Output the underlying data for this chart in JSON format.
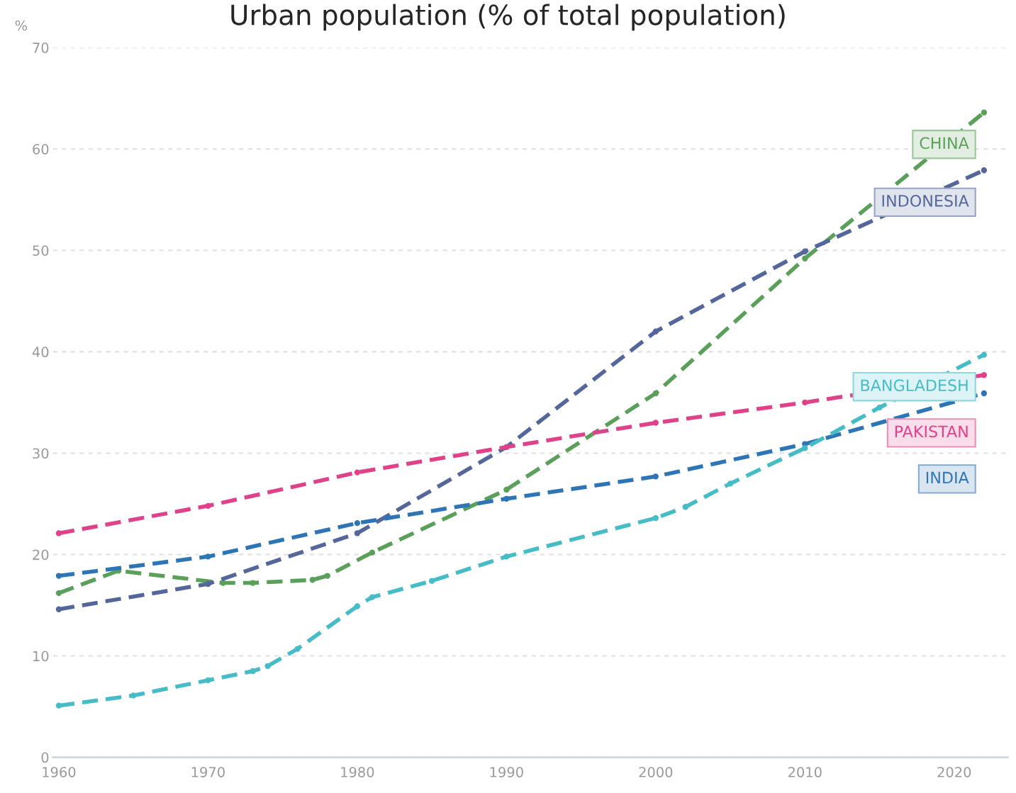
{
  "chart_data": {
    "type": "line",
    "title": "Urban population (% of total population)",
    "ylabel": "%",
    "xlim": [
      1959.6,
      2023.6
    ],
    "ylim": [
      0,
      70
    ],
    "xticks": [
      1960,
      1970,
      1980,
      1990,
      2000,
      2010,
      2020
    ],
    "yticks": [
      0,
      10,
      20,
      30,
      40,
      50,
      60,
      70
    ],
    "grid": "y",
    "legend": false,
    "marker": "circle",
    "line_style": "dashed",
    "series": [
      {
        "name": "CHINA",
        "color": "#5aa05a",
        "x": [
          1960,
          1964,
          1971,
          1973,
          1977,
          1978,
          1981,
          1990,
          2000,
          2010,
          2022
        ],
        "values": [
          16.2,
          18.4,
          17.2,
          17.2,
          17.5,
          17.9,
          20.2,
          26.4,
          35.9,
          49.2,
          63.6
        ]
      },
      {
        "name": "INDONESIA",
        "color": "#55679a",
        "x": [
          1960,
          1970,
          1980,
          1990,
          2000,
          2010,
          2022
        ],
        "values": [
          14.6,
          17.1,
          22.1,
          30.6,
          42.0,
          49.9,
          57.9
        ]
      },
      {
        "name": "PAKISTAN",
        "color": "#e0428a",
        "x": [
          1960,
          1970,
          1980,
          1990,
          2000,
          2010,
          2022
        ],
        "values": [
          22.1,
          24.8,
          28.1,
          30.6,
          33.0,
          35.0,
          37.7
        ]
      },
      {
        "name": "INDIA",
        "color": "#2e75b6",
        "x": [
          1960,
          1970,
          1980,
          1990,
          2000,
          2010,
          2022
        ],
        "values": [
          17.9,
          19.8,
          23.1,
          25.5,
          27.7,
          30.9,
          35.9
        ]
      },
      {
        "name": "BANGLADESH",
        "color": "#45bcc6",
        "x": [
          1960,
          1965,
          1970,
          1973,
          1974,
          1976,
          1980,
          1981,
          1985,
          1990,
          2000,
          2002,
          2005,
          2010,
          2015,
          2022
        ],
        "values": [
          5.1,
          6.1,
          7.6,
          8.5,
          9.0,
          10.7,
          14.9,
          15.8,
          17.4,
          19.8,
          23.6,
          24.7,
          27.0,
          30.5,
          34.5,
          39.7
        ]
      }
    ]
  }
}
